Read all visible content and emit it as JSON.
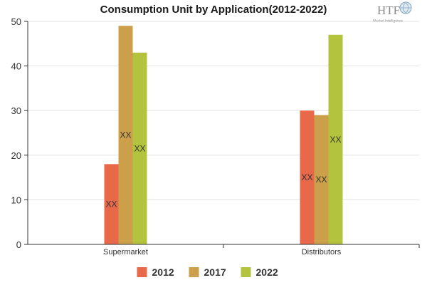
{
  "chart_data": {
    "type": "bar",
    "title": "Consumption Unit by  Application(2012-2022)",
    "categories": [
      "Supermarket",
      "Distributors"
    ],
    "series": [
      {
        "name": "2012",
        "color": "#e8694a",
        "values": [
          18,
          30
        ],
        "labels": [
          "XX",
          "XX"
        ]
      },
      {
        "name": "2017",
        "color": "#cc9f4a",
        "values": [
          49,
          29
        ],
        "labels": [
          "XX",
          "XX"
        ]
      },
      {
        "name": "2022",
        "color": "#b3c33d",
        "values": [
          43,
          47
        ],
        "labels": [
          "XX",
          "XX"
        ]
      }
    ],
    "ylim": [
      0,
      50
    ],
    "yticks": [
      0,
      10,
      20,
      30,
      40,
      50
    ],
    "grid": true,
    "legend_position": "bottom"
  },
  "logo": {
    "text": "HTF",
    "subtext": "Market Intelligence",
    "icon": "globe-icon"
  }
}
